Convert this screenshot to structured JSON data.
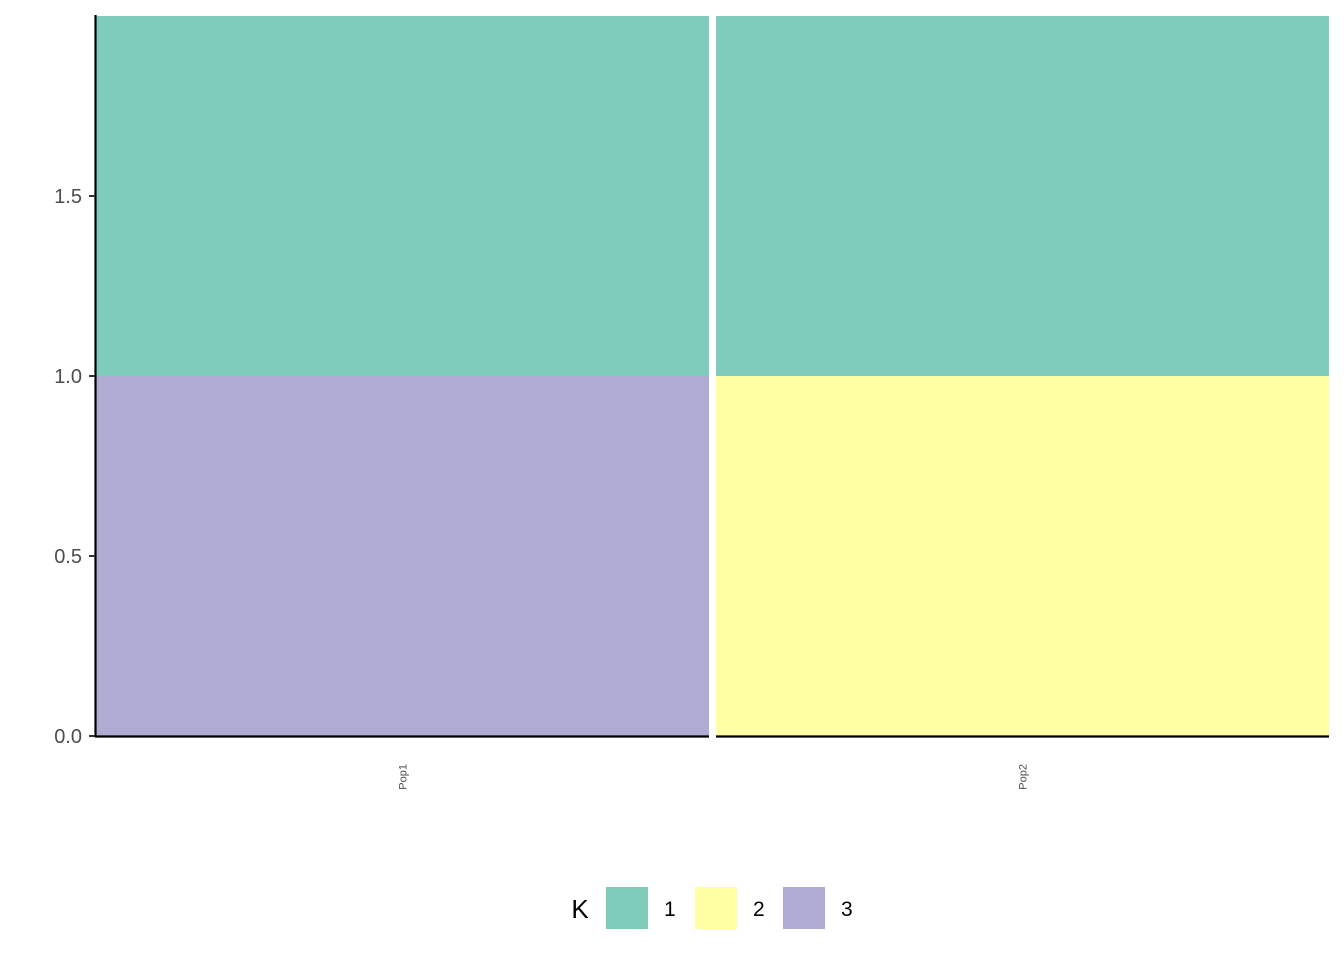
{
  "chart_data": {
    "type": "bar",
    "stacked": true,
    "facets": [
      "Pop1",
      "Pop2"
    ],
    "y_ticks": [
      "0.0",
      "0.5",
      "1.0",
      "1.5"
    ],
    "ylim": [
      0,
      2
    ],
    "series": [
      {
        "name": "1",
        "color": "#7FCCBB",
        "values": [
          1,
          1
        ]
      },
      {
        "name": "2",
        "color": "#FFFFA3",
        "values": [
          0,
          1
        ]
      },
      {
        "name": "3",
        "color": "#B0ABD2",
        "values": [
          1,
          0
        ]
      }
    ],
    "stack_order": [
      "3",
      "2",
      "1"
    ],
    "legend": {
      "title": "K",
      "position": "bottom",
      "items": [
        {
          "label": "1",
          "color": "#7FCCBB"
        },
        {
          "label": "2",
          "color": "#FFFFA3"
        },
        {
          "label": "3",
          "color": "#B0ABD2"
        }
      ]
    },
    "grid": false
  }
}
